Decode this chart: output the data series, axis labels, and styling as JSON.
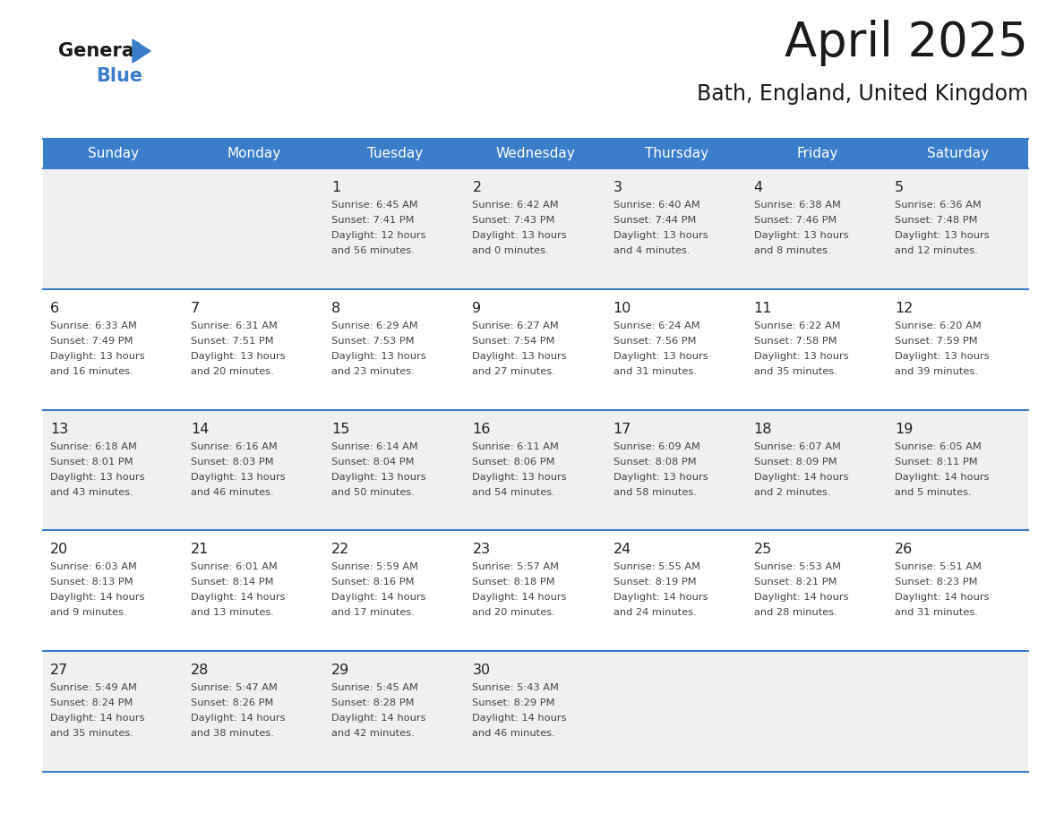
{
  "title": "April 2025",
  "subtitle": "Bath, England, United Kingdom",
  "header_color": "#3A7DC9",
  "header_text_color": "#FFFFFF",
  "day_names": [
    "Sunday",
    "Monday",
    "Tuesday",
    "Wednesday",
    "Thursday",
    "Friday",
    "Saturday"
  ],
  "bg_color_odd": "#F0F0F0",
  "bg_color_even": "#FFFFFF",
  "grid_line_color": "#3A7DC9",
  "cell_text_color": "#444444",
  "day_num_color": "#222222",
  "logo_general_color": "#1a1a1a",
  "logo_blue_color": "#3A7DC9",
  "logo_triangle_color": "#3A7DC9",
  "title_color": "#1a1a1a",
  "subtitle_color": "#1a1a1a",
  "weeks": [
    {
      "days": [
        {
          "date": "",
          "sunrise": "",
          "sunset": "",
          "daylight": ""
        },
        {
          "date": "",
          "sunrise": "",
          "sunset": "",
          "daylight": ""
        },
        {
          "date": "1",
          "sunrise": "6:45 AM",
          "sunset": "7:41 PM",
          "daylight": "12 hours\nand 56 minutes."
        },
        {
          "date": "2",
          "sunrise": "6:42 AM",
          "sunset": "7:43 PM",
          "daylight": "13 hours\nand 0 minutes."
        },
        {
          "date": "3",
          "sunrise": "6:40 AM",
          "sunset": "7:44 PM",
          "daylight": "13 hours\nand 4 minutes."
        },
        {
          "date": "4",
          "sunrise": "6:38 AM",
          "sunset": "7:46 PM",
          "daylight": "13 hours\nand 8 minutes."
        },
        {
          "date": "5",
          "sunrise": "6:36 AM",
          "sunset": "7:48 PM",
          "daylight": "13 hours\nand 12 minutes."
        }
      ]
    },
    {
      "days": [
        {
          "date": "6",
          "sunrise": "6:33 AM",
          "sunset": "7:49 PM",
          "daylight": "13 hours\nand 16 minutes."
        },
        {
          "date": "7",
          "sunrise": "6:31 AM",
          "sunset": "7:51 PM",
          "daylight": "13 hours\nand 20 minutes."
        },
        {
          "date": "8",
          "sunrise": "6:29 AM",
          "sunset": "7:53 PM",
          "daylight": "13 hours\nand 23 minutes."
        },
        {
          "date": "9",
          "sunrise": "6:27 AM",
          "sunset": "7:54 PM",
          "daylight": "13 hours\nand 27 minutes."
        },
        {
          "date": "10",
          "sunrise": "6:24 AM",
          "sunset": "7:56 PM",
          "daylight": "13 hours\nand 31 minutes."
        },
        {
          "date": "11",
          "sunrise": "6:22 AM",
          "sunset": "7:58 PM",
          "daylight": "13 hours\nand 35 minutes."
        },
        {
          "date": "12",
          "sunrise": "6:20 AM",
          "sunset": "7:59 PM",
          "daylight": "13 hours\nand 39 minutes."
        }
      ]
    },
    {
      "days": [
        {
          "date": "13",
          "sunrise": "6:18 AM",
          "sunset": "8:01 PM",
          "daylight": "13 hours\nand 43 minutes."
        },
        {
          "date": "14",
          "sunrise": "6:16 AM",
          "sunset": "8:03 PM",
          "daylight": "13 hours\nand 46 minutes."
        },
        {
          "date": "15",
          "sunrise": "6:14 AM",
          "sunset": "8:04 PM",
          "daylight": "13 hours\nand 50 minutes."
        },
        {
          "date": "16",
          "sunrise": "6:11 AM",
          "sunset": "8:06 PM",
          "daylight": "13 hours\nand 54 minutes."
        },
        {
          "date": "17",
          "sunrise": "6:09 AM",
          "sunset": "8:08 PM",
          "daylight": "13 hours\nand 58 minutes."
        },
        {
          "date": "18",
          "sunrise": "6:07 AM",
          "sunset": "8:09 PM",
          "daylight": "14 hours\nand 2 minutes."
        },
        {
          "date": "19",
          "sunrise": "6:05 AM",
          "sunset": "8:11 PM",
          "daylight": "14 hours\nand 5 minutes."
        }
      ]
    },
    {
      "days": [
        {
          "date": "20",
          "sunrise": "6:03 AM",
          "sunset": "8:13 PM",
          "daylight": "14 hours\nand 9 minutes."
        },
        {
          "date": "21",
          "sunrise": "6:01 AM",
          "sunset": "8:14 PM",
          "daylight": "14 hours\nand 13 minutes."
        },
        {
          "date": "22",
          "sunrise": "5:59 AM",
          "sunset": "8:16 PM",
          "daylight": "14 hours\nand 17 minutes."
        },
        {
          "date": "23",
          "sunrise": "5:57 AM",
          "sunset": "8:18 PM",
          "daylight": "14 hours\nand 20 minutes."
        },
        {
          "date": "24",
          "sunrise": "5:55 AM",
          "sunset": "8:19 PM",
          "daylight": "14 hours\nand 24 minutes."
        },
        {
          "date": "25",
          "sunrise": "5:53 AM",
          "sunset": "8:21 PM",
          "daylight": "14 hours\nand 28 minutes."
        },
        {
          "date": "26",
          "sunrise": "5:51 AM",
          "sunset": "8:23 PM",
          "daylight": "14 hours\nand 31 minutes."
        }
      ]
    },
    {
      "days": [
        {
          "date": "27",
          "sunrise": "5:49 AM",
          "sunset": "8:24 PM",
          "daylight": "14 hours\nand 35 minutes."
        },
        {
          "date": "28",
          "sunrise": "5:47 AM",
          "sunset": "8:26 PM",
          "daylight": "14 hours\nand 38 minutes."
        },
        {
          "date": "29",
          "sunrise": "5:45 AM",
          "sunset": "8:28 PM",
          "daylight": "14 hours\nand 42 minutes."
        },
        {
          "date": "30",
          "sunrise": "5:43 AM",
          "sunset": "8:29 PM",
          "daylight": "14 hours\nand 46 minutes."
        },
        {
          "date": "",
          "sunrise": "",
          "sunset": "",
          "daylight": ""
        },
        {
          "date": "",
          "sunrise": "",
          "sunset": "",
          "daylight": ""
        },
        {
          "date": "",
          "sunrise": "",
          "sunset": "",
          "daylight": ""
        }
      ]
    }
  ]
}
